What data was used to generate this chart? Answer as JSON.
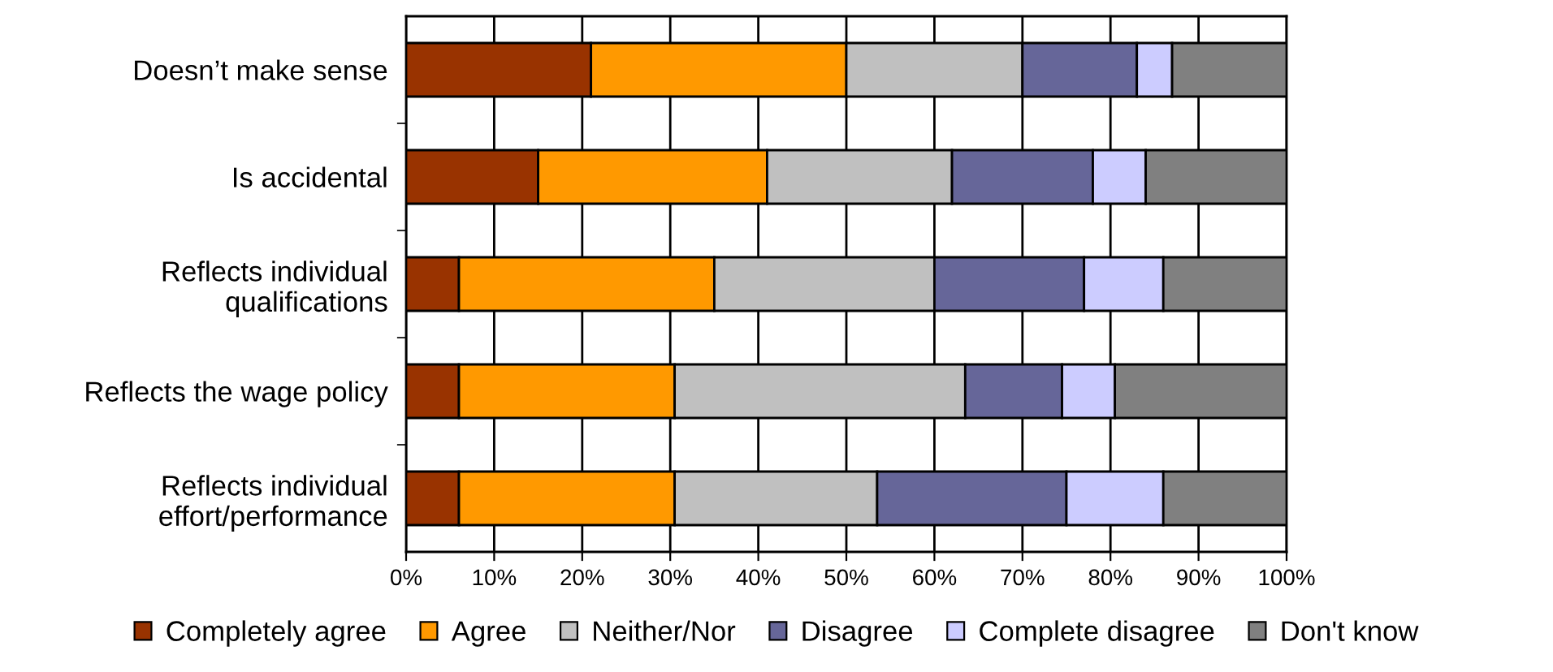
{
  "chart_data": {
    "type": "bar",
    "orientation": "horizontal",
    "stacked": true,
    "categories": [
      "Doesn’t make sense",
      "Is accidental",
      "Reflects individual\nqualifications",
      "Reflects the wage policy",
      "Reflects individual\neffort/performance"
    ],
    "series": [
      {
        "name": "Completely agree",
        "color": "#993300",
        "values": [
          21,
          15,
          6,
          6,
          6
        ]
      },
      {
        "name": "Agree",
        "color": "#ff9900",
        "values": [
          29,
          26,
          29,
          24.5,
          24.5
        ]
      },
      {
        "name": "Neither/Nor",
        "color": "#c0c0c0",
        "values": [
          20,
          21,
          25,
          33,
          23
        ]
      },
      {
        "name": "Disagree",
        "color": "#666699",
        "values": [
          13,
          16,
          17,
          11,
          21.5
        ]
      },
      {
        "name": "Complete disagree",
        "color": "#ccccff",
        "values": [
          4,
          6,
          9,
          6,
          11
        ]
      },
      {
        "name": "Don't know",
        "color": "#808080",
        "values": [
          13,
          16,
          14,
          19.5,
          14
        ]
      }
    ],
    "xlim": [
      0,
      100
    ],
    "xticks": [
      {
        "value": 0,
        "label": "0%"
      },
      {
        "value": 10,
        "label": "10%"
      },
      {
        "value": 20,
        "label": "20%"
      },
      {
        "value": 30,
        "label": "30%"
      },
      {
        "value": 40,
        "label": "40%"
      },
      {
        "value": 50,
        "label": "50%"
      },
      {
        "value": 60,
        "label": "60%"
      },
      {
        "value": 70,
        "label": "70%"
      },
      {
        "value": 80,
        "label": "80%"
      },
      {
        "value": 90,
        "label": "90%"
      },
      {
        "value": 100,
        "label": "100%"
      }
    ],
    "grid": "x",
    "legend": "bottom"
  }
}
